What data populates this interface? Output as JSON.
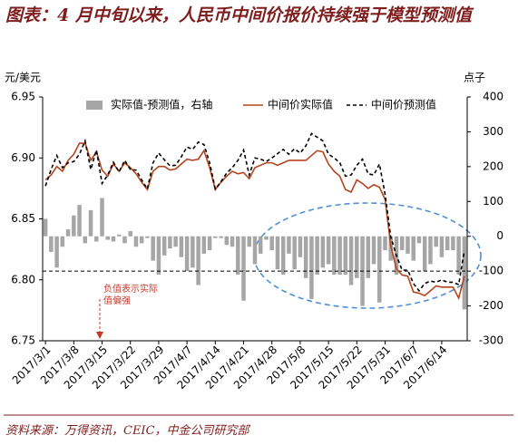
{
  "chart_data": {
    "type": "bar-line",
    "title": "图表：4 月中旬以来，人民币中间价报价持续强于模型预测值",
    "y_label": "元/美元",
    "y2_label": "点子",
    "source": "资料来源：万得资讯，CEIC，中金公司研究部",
    "annotation": "负值表示实际值偏强",
    "categories": [
      "2017/3/1",
      null,
      null,
      null,
      null,
      "2017/3/8",
      null,
      null,
      null,
      null,
      "2017/3/15",
      null,
      null,
      null,
      null,
      "2017/3/22",
      null,
      null,
      null,
      null,
      "2017/3/29",
      null,
      null,
      null,
      null,
      "2017/4/7",
      null,
      null,
      null,
      null,
      "2017/4/14",
      null,
      null,
      null,
      null,
      "2017/4/21",
      null,
      null,
      null,
      null,
      "2017/4/28",
      null,
      null,
      null,
      null,
      "2017/5/8",
      null,
      null,
      null,
      null,
      "2017/5/15",
      null,
      null,
      null,
      null,
      "2017/5/22",
      null,
      null,
      null,
      null,
      "2017/5/31",
      null,
      null,
      null,
      null,
      "2017/6/7",
      null,
      null,
      null,
      null,
      "2017/6/14",
      null,
      null,
      null,
      null
    ],
    "series": [
      {
        "name": "实际值-预测值，右轴",
        "type": "bar",
        "axis": "y2",
        "color": "#a6a6a6",
        "values": [
          50,
          -45,
          -90,
          -30,
          20,
          60,
          90,
          -20,
          75,
          -15,
          110,
          -10,
          -15,
          5,
          -20,
          15,
          -30,
          -20,
          -5,
          -70,
          -110,
          -55,
          -35,
          -30,
          -60,
          -100,
          -90,
          -140,
          -50,
          -40,
          -5,
          -5,
          -25,
          -30,
          -110,
          -185,
          -30,
          -80,
          -50,
          -10,
          -40,
          -95,
          -110,
          -50,
          -95,
          -60,
          -120,
          -180,
          -110,
          -90,
          -80,
          -110,
          -110,
          -110,
          -140,
          -120,
          -200,
          -120,
          -80,
          -190,
          -40,
          -70,
          -110,
          -40,
          -50,
          -70,
          -20,
          -100,
          -80,
          -30,
          -60,
          -40,
          -40,
          -110,
          -210
        ]
      },
      {
        "name": "中间价实际值",
        "type": "line",
        "color": "#b5441e",
        "values": [
          6.882,
          6.886,
          6.893,
          6.889,
          6.898,
          6.903,
          6.912,
          6.912,
          6.898,
          6.905,
          6.89,
          6.885,
          6.895,
          6.889,
          6.896,
          6.892,
          6.887,
          6.88,
          6.874,
          6.889,
          6.893,
          6.893,
          6.89,
          6.891,
          6.895,
          6.899,
          6.898,
          6.899,
          6.906,
          6.892,
          6.874,
          6.88,
          6.885,
          6.889,
          6.887,
          6.888,
          6.883,
          6.892,
          6.894,
          6.896,
          6.896,
          6.894,
          6.896,
          6.898,
          6.898,
          6.898,
          6.898,
          6.902,
          6.906,
          6.905,
          6.895,
          6.889,
          6.885,
          6.874,
          6.872,
          6.882,
          6.879,
          6.875,
          6.878,
          6.876,
          6.866,
          6.828,
          6.809,
          6.804,
          6.803,
          6.79,
          6.789,
          6.787,
          6.791,
          6.795,
          6.794,
          6.794,
          6.794,
          6.785,
          6.803
        ]
      },
      {
        "name": "中间价预测值",
        "type": "line",
        "dashed": true,
        "color": "#000000",
        "values": [
          6.877,
          6.8905,
          6.902,
          6.892,
          6.896,
          6.897,
          6.903,
          6.914,
          6.8905,
          6.9065,
          6.879,
          6.886,
          6.8965,
          6.8885,
          6.898,
          6.8905,
          6.89,
          6.882,
          6.8745,
          6.896,
          6.904,
          6.8985,
          6.8935,
          6.894,
          6.901,
          6.909,
          6.907,
          6.913,
          6.911,
          6.896,
          6.8745,
          6.8805,
          6.8875,
          6.892,
          6.898,
          6.9065,
          6.886,
          6.9,
          6.899,
          6.897,
          6.9,
          6.9035,
          6.907,
          6.903,
          6.9075,
          6.904,
          6.91,
          6.92,
          6.917,
          6.914,
          6.903,
          6.9,
          6.896,
          6.885,
          6.886,
          6.894,
          6.899,
          6.887,
          6.886,
          6.895,
          6.87,
          6.835,
          6.82,
          6.808,
          6.808,
          6.797,
          6.791,
          6.797,
          6.799,
          6.798,
          6.8,
          6.798,
          6.798,
          6.796,
          6.824
        ]
      }
    ],
    "ylim": [
      6.75,
      6.95
    ],
    "yticks": [
      6.75,
      {
        "value": 6.8,
        "label": "6.80"
      },
      6.85,
      {
        "value": 6.9,
        "label": "6.90"
      },
      6.95
    ],
    "y2lim": [
      -300,
      400
    ],
    "y2ticks": [
      -300,
      -200,
      -100,
      0,
      100,
      200,
      300,
      400
    ],
    "reference_line_y2": -100,
    "legend": "top"
  }
}
